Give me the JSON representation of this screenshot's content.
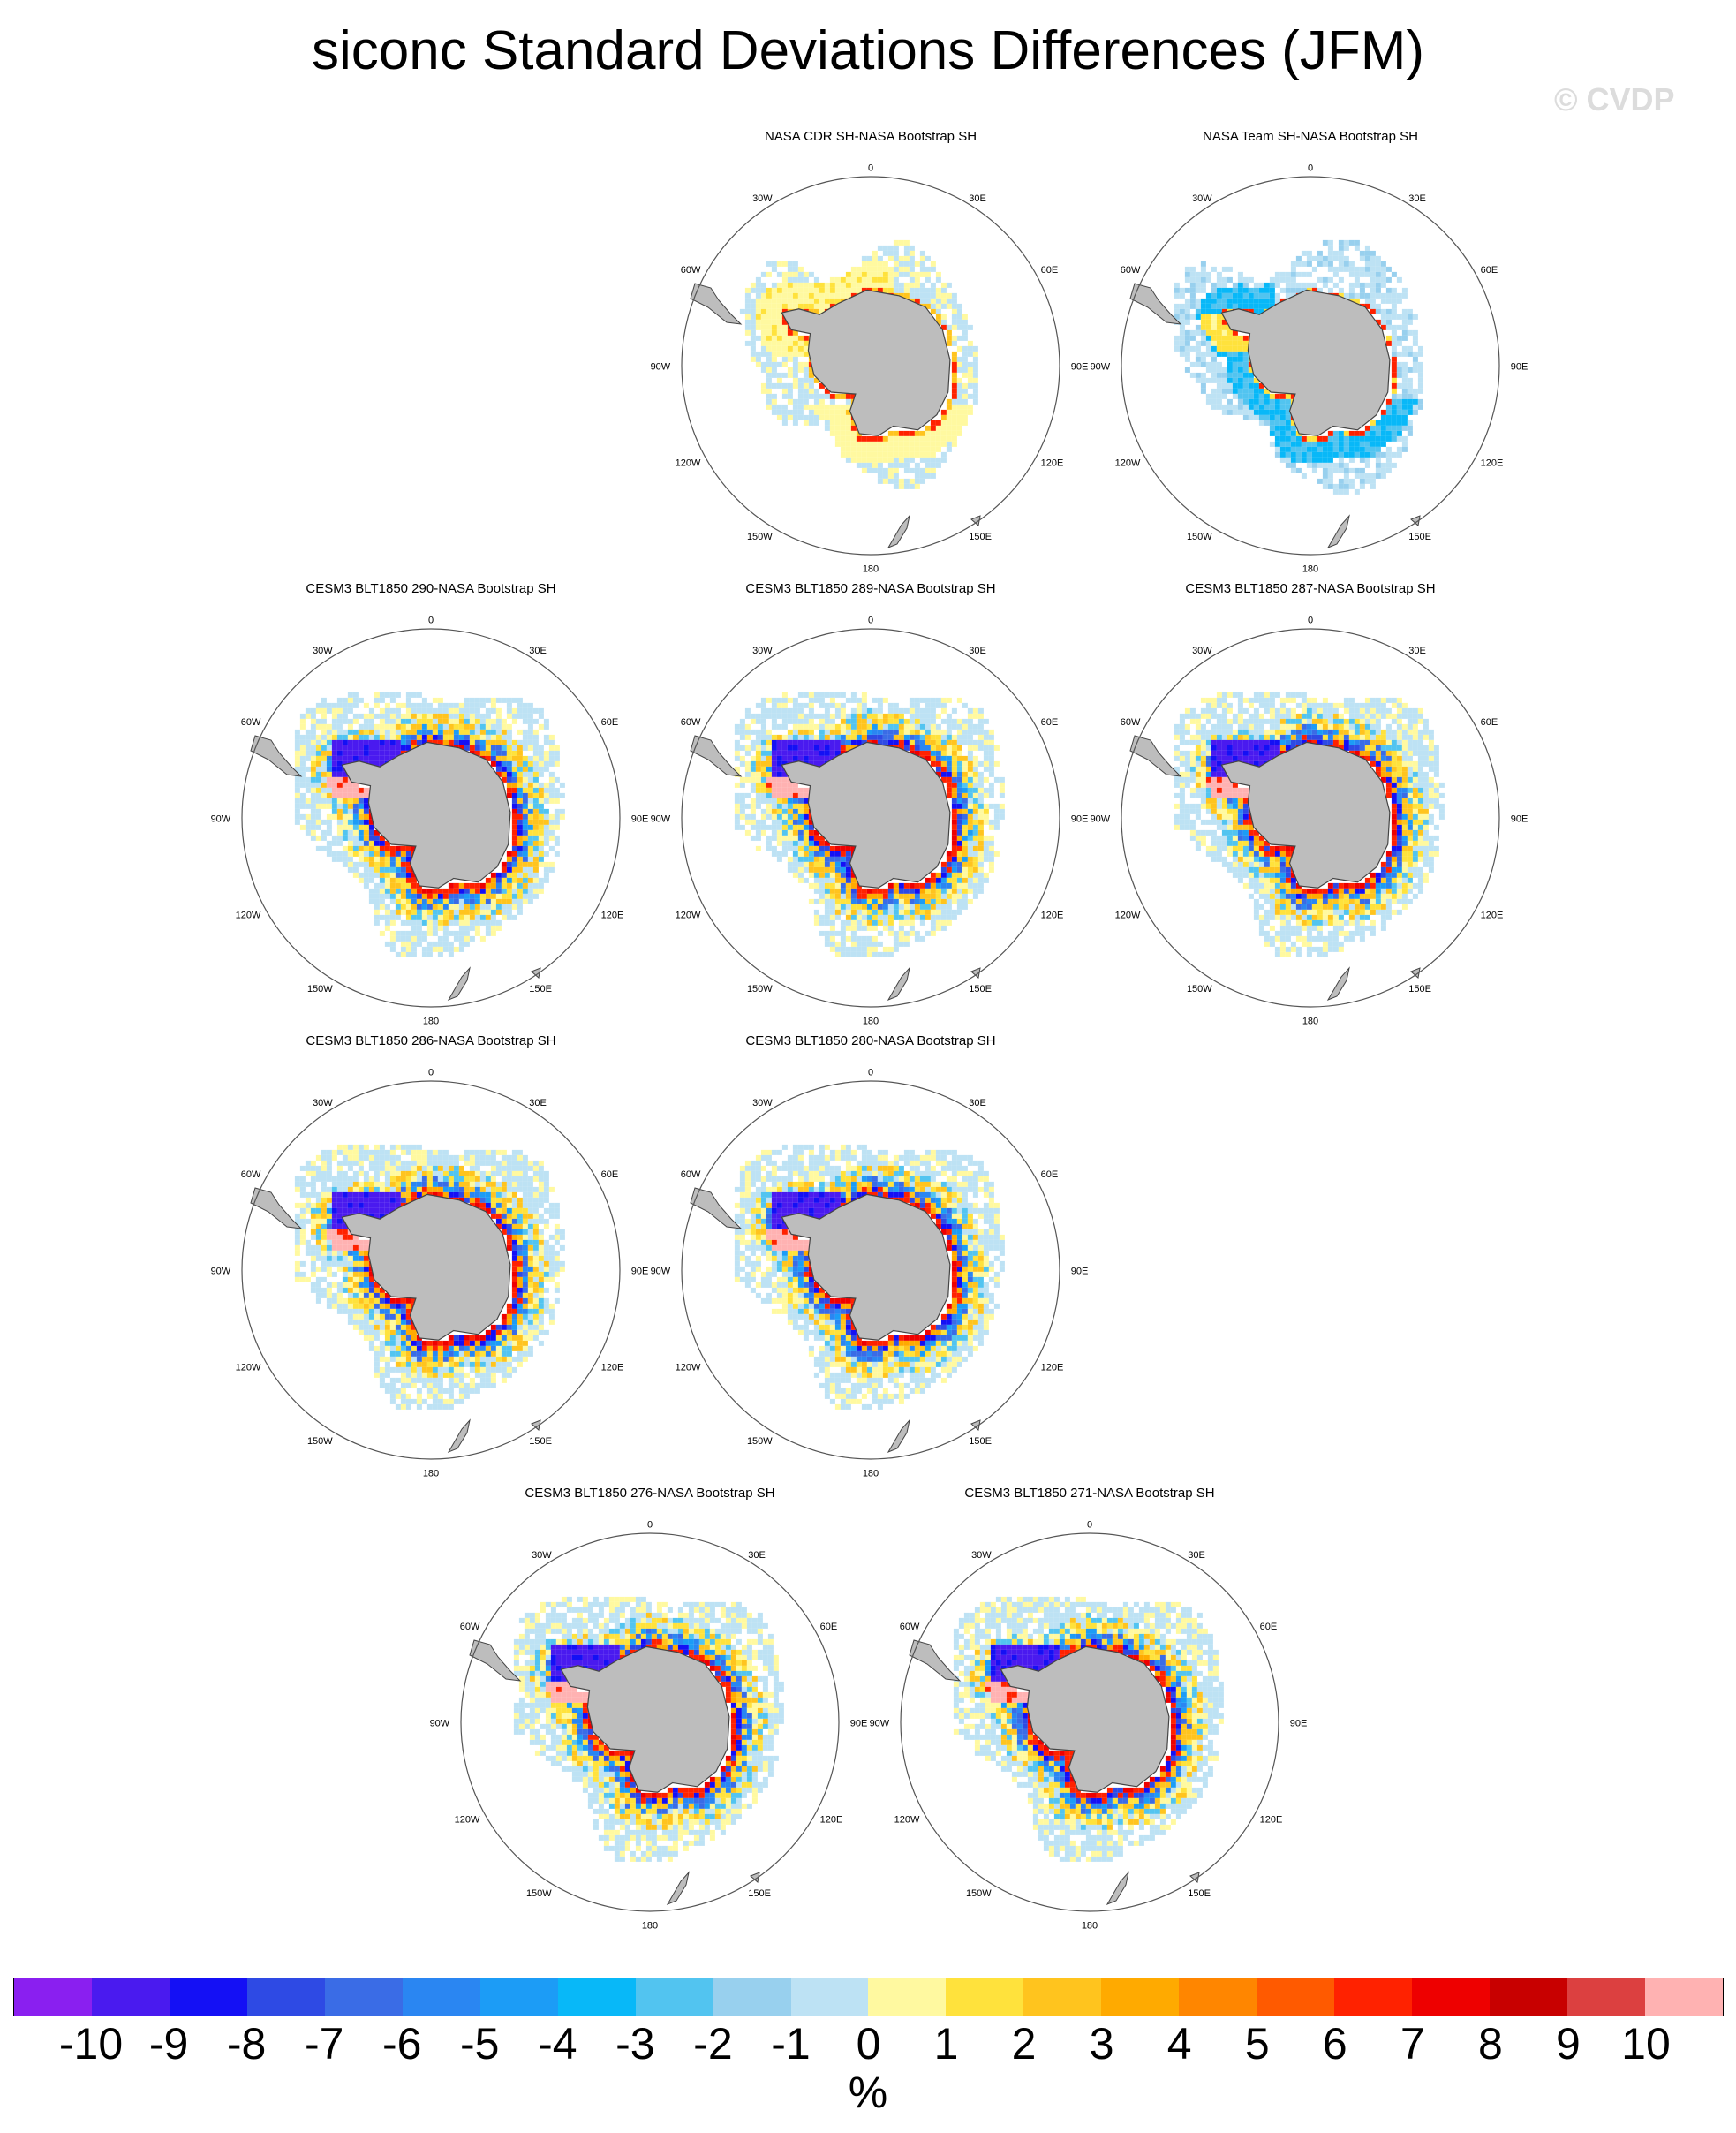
{
  "title": "siconc Standard Deviations Differences (JFM)",
  "watermark": "© CVDP",
  "units_label": "%",
  "colorbar": {
    "labels": [
      "-10",
      "-9",
      "-8",
      "-7",
      "-6",
      "-5",
      "-4",
      "-3",
      "-2",
      "-1",
      "0",
      "1",
      "2",
      "3",
      "4",
      "5",
      "6",
      "7",
      "8",
      "9",
      "10"
    ],
    "colors": [
      "#8a1ff0",
      "#4a1aef",
      "#1410f5",
      "#2e4ae4",
      "#3a6ce6",
      "#2a86f2",
      "#1c9cf6",
      "#08b8f8",
      "#52c4f0",
      "#98d0ee",
      "#bde2f4",
      "#fff9a0",
      "#ffe23c",
      "#ffc41e",
      "#ffaa00",
      "#ff8600",
      "#ff5a00",
      "#ff2200",
      "#ee0000",
      "#c80000",
      "#dc4040",
      "#ffb2b2"
    ]
  },
  "map_labels": {
    "top": "0",
    "bottom": "180",
    "left": "90W",
    "right": "90E",
    "upper_left": "30W",
    "upper_right": "30E",
    "mid_upper_left": "60W",
    "mid_upper_right": "60E",
    "mid_lower_left": "120W",
    "mid_lower_right": "120E",
    "lower_left": "150W",
    "lower_right": "150E"
  },
  "panels": [
    {
      "title": "NASA CDR SH-NASA Bootstrap SH",
      "style": "obs-yellow"
    },
    {
      "title": "NASA Team SH-NASA Bootstrap SH",
      "style": "obs-blue"
    },
    {
      "title": "CESM3 BLT1850 290-NASA Bootstrap SH",
      "style": "model"
    },
    {
      "title": "CESM3 BLT1850 289-NASA Bootstrap SH",
      "style": "model"
    },
    {
      "title": "CESM3 BLT1850 287-NASA Bootstrap SH",
      "style": "model"
    },
    {
      "title": "CESM3 BLT1850 286-NASA Bootstrap SH",
      "style": "model"
    },
    {
      "title": "CESM3 BLT1850 280-NASA Bootstrap SH",
      "style": "model"
    },
    {
      "title": "CESM3 BLT1850 276-NASA Bootstrap SH",
      "style": "model"
    },
    {
      "title": "CESM3 BLT1850 271-NASA Bootstrap SH",
      "style": "model"
    }
  ]
}
